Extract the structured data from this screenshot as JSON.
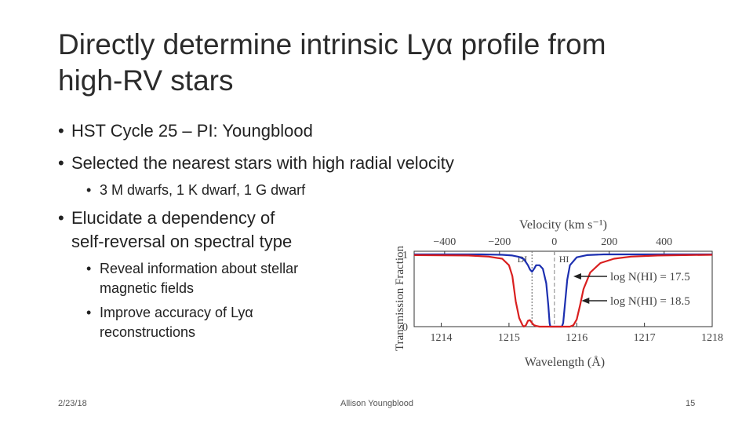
{
  "slide": {
    "title_line1": "Directly determine intrinsic Lyα profile from",
    "title_line2": "high-RV stars",
    "bullets": [
      "HST Cycle 25 – PI: Youngblood",
      "Selected the nearest stars with high radial velocity",
      "3 M dwarfs, 1 K dwarf, 1 G dwarf",
      "Elucidate a dependency of",
      "self-reversal on spectral type",
      "Reveal information about stellar",
      "magnetic fields",
      "Improve accuracy of Lyα",
      "reconstructions"
    ],
    "bullet_glyph": "•",
    "footer": {
      "date": "2/23/18",
      "author": "Allison Youngblood",
      "page": "15"
    }
  },
  "chart_data": {
    "type": "line",
    "xlabel": "Wavelength (Å)",
    "ylabel": "Transmission Fraction",
    "top_axis_label": "Velocity (km s⁻¹)",
    "top_ticks": [
      {
        "label": "−400",
        "wavelength": 1214.05
      },
      {
        "label": "−200",
        "wavelength": 1214.86
      },
      {
        "label": "0",
        "wavelength": 1215.67
      },
      {
        "label": "200",
        "wavelength": 1216.48
      },
      {
        "label": "400",
        "wavelength": 1217.29
      }
    ],
    "xlim": [
      1213.6,
      1218.0
    ],
    "ylim": [
      0,
      1
    ],
    "x_ticks": [
      "1214",
      "1215",
      "1216",
      "1217",
      "1218"
    ],
    "y_ticks": [
      "0",
      "1"
    ],
    "reference_lines": [
      {
        "label": "DI",
        "wavelength": 1215.34,
        "color": "#777777"
      },
      {
        "label": "HI",
        "wavelength": 1215.67,
        "color": "#999999"
      }
    ],
    "series": [
      {
        "label": "log N(HI) = 17.5",
        "color": "#1c2fb0",
        "x": [
          1213.6,
          1214.6,
          1214.9,
          1215.05,
          1215.15,
          1215.22,
          1215.28,
          1215.31,
          1215.34,
          1215.37,
          1215.4,
          1215.45,
          1215.5,
          1215.55,
          1215.58,
          1215.6,
          1215.61,
          1215.78,
          1215.8,
          1215.83,
          1215.86,
          1215.9,
          1216.0,
          1216.15,
          1216.4,
          1217.0,
          1218.0
        ],
        "y": [
          1.0,
          1.0,
          0.995,
          0.985,
          0.965,
          0.935,
          0.85,
          0.79,
          0.76,
          0.8,
          0.85,
          0.85,
          0.8,
          0.6,
          0.3,
          0.05,
          0.0,
          0.0,
          0.05,
          0.35,
          0.65,
          0.85,
          0.96,
          0.99,
          1.0,
          1.0,
          1.0
        ]
      },
      {
        "label": "log N(HI) = 18.5",
        "color": "#d91f1f",
        "x": [
          1213.6,
          1214.4,
          1214.7,
          1214.9,
          1215.0,
          1215.05,
          1215.1,
          1215.15,
          1215.2,
          1215.22,
          1215.25,
          1215.28,
          1215.31,
          1215.34,
          1215.37,
          1215.4,
          1215.45,
          1215.5,
          1215.9,
          1215.95,
          1216.0,
          1216.05,
          1216.1,
          1216.2,
          1216.35,
          1216.55,
          1216.8,
          1217.2,
          1217.6,
          1218.0
        ],
        "y": [
          0.99,
          0.985,
          0.97,
          0.94,
          0.85,
          0.7,
          0.35,
          0.12,
          0.02,
          0.0,
          0.02,
          0.08,
          0.09,
          0.05,
          0.02,
          0.01,
          0.0,
          0.0,
          0.0,
          0.02,
          0.1,
          0.3,
          0.52,
          0.75,
          0.88,
          0.94,
          0.97,
          0.985,
          0.99,
          0.995
        ]
      }
    ],
    "annotations": [
      {
        "text": "log N(HI) = 17.5",
        "points_to_series": 0
      },
      {
        "text": "log N(HI) = 18.5",
        "points_to_series": 1
      }
    ]
  }
}
